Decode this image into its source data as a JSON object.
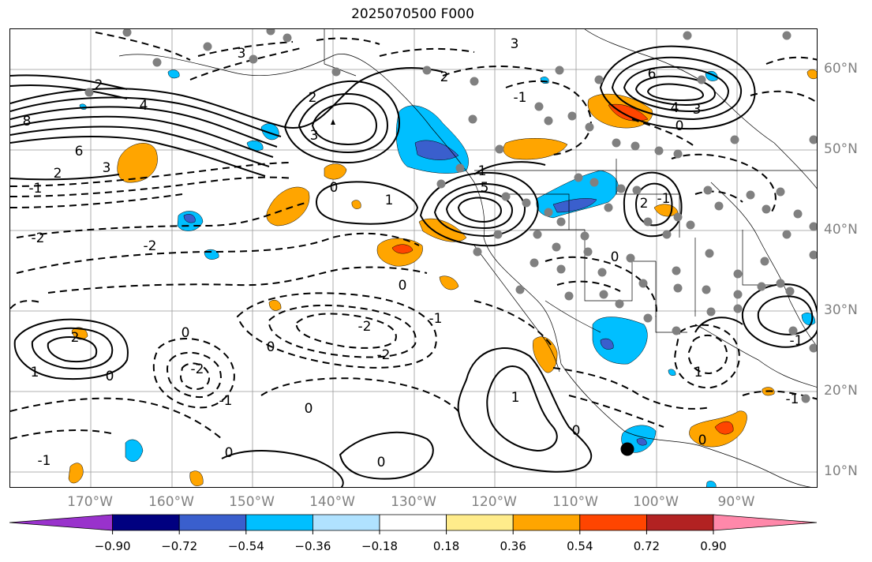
{
  "title": "2025070500 F000",
  "latitude_labels": [
    "60°N",
    "50°N",
    "40°N",
    "30°N",
    "20°N",
    "10°N"
  ],
  "longitude_labels": [
    "170°W",
    "160°W",
    "150°W",
    "140°W",
    "130°W",
    "120°W",
    "110°W",
    "100°W",
    "90°W"
  ],
  "colorbar": {
    "tick_labels": [
      "−0.90",
      "−0.72",
      "−0.54",
      "−0.36",
      "−0.18",
      "0.18",
      "0.36",
      "0.54",
      "0.72",
      "0.90"
    ],
    "colors": [
      "#9932cc",
      "#000080",
      "#3a5fcd",
      "#00bfff",
      "#b0e2ff",
      "#ffffff",
      "#ffec8b",
      "#ffa500",
      "#ff4500",
      "#b22222",
      "#ff88aa"
    ]
  },
  "contour_labels": [
    {
      "text": "3"
    },
    {
      "text": "3"
    },
    {
      "text": "2"
    },
    {
      "text": "2"
    },
    {
      "text": "4"
    },
    {
      "text": "8"
    },
    {
      "text": "6"
    },
    {
      "text": "3"
    },
    {
      "text": "2"
    },
    {
      "text": "-1"
    },
    {
      "text": "-2"
    },
    {
      "text": "-2"
    },
    {
      "text": "2"
    },
    {
      "text": "3"
    },
    {
      "text": "0"
    },
    {
      "text": "1"
    },
    {
      "text": "1"
    },
    {
      "text": "5"
    },
    {
      "text": "6"
    },
    {
      "text": "4"
    },
    {
      "text": "3"
    },
    {
      "text": "0"
    },
    {
      "text": "-1"
    },
    {
      "text": "2"
    },
    {
      "text": "0"
    },
    {
      "text": "0"
    },
    {
      "text": "-2"
    },
    {
      "text": "-1"
    },
    {
      "text": "-2"
    },
    {
      "text": "0"
    },
    {
      "text": "2"
    },
    {
      "text": "1"
    },
    {
      "text": "-2"
    },
    {
      "text": "0"
    },
    {
      "text": "-1"
    },
    {
      "text": "-1"
    },
    {
      "text": "0"
    },
    {
      "text": "0"
    },
    {
      "text": "1"
    },
    {
      "text": "0"
    },
    {
      "text": "1"
    },
    {
      "text": "0"
    },
    {
      "text": "-1"
    },
    {
      "text": "-1"
    },
    {
      "text": "0"
    },
    {
      "text": "-1"
    },
    {
      "text": "0"
    }
  ]
}
